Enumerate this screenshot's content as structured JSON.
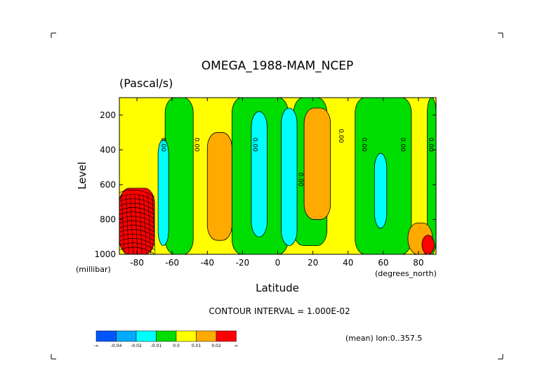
{
  "chart_data": {
    "type": "heatmap",
    "title": "OMEGA_1988-MAM_NCEP",
    "subtitle": "(Pascal/s)",
    "xlabel": "Latitude",
    "xunits": "(degrees_north)",
    "ylabel": "Level",
    "yunits": "(millibar)",
    "xlim": [
      -90,
      90
    ],
    "ylim": [
      1000,
      100
    ],
    "x_ticks": [
      -80,
      -60,
      -40,
      -20,
      0,
      20,
      40,
      60,
      80
    ],
    "x_tick_labels": [
      "-80",
      "-60",
      "-40",
      "-20",
      "0",
      "20",
      "40",
      "60",
      "80"
    ],
    "y_ticks": [
      200,
      400,
      600,
      800,
      1000
    ],
    "y_tick_labels": [
      "200",
      "400",
      "600",
      "800",
      "1000"
    ],
    "contour_interval_text": "CONTOUR INTERVAL = 1.000E-02",
    "mean_text": "(mean) lon:0..357.5",
    "contour_labels": [
      {
        "text": "0.00",
        "x": -66,
        "y": 370
      },
      {
        "text": "0.00",
        "x": -47,
        "y": 370
      },
      {
        "text": "0.00",
        "x": -14,
        "y": 370
      },
      {
        "text": "0.00",
        "x": 12,
        "y": 570
      },
      {
        "text": "0.00",
        "x": 35,
        "y": 320
      },
      {
        "text": "0.00",
        "x": 48,
        "y": 370
      },
      {
        "text": "0.00",
        "x": 70,
        "y": 370
      },
      {
        "text": "0.00",
        "x": 86,
        "y": 370
      }
    ],
    "legend": {
      "colors": [
        "#0055ff",
        "#00aaff",
        "#00ffff",
        "#00dd00",
        "#ffff00",
        "#ffaa00",
        "#ff0000"
      ],
      "labels": [
        "-∞",
        "-0.04",
        "-0.02",
        "-0.01",
        "0.0",
        "0.01",
        "0.02",
        "∞"
      ]
    },
    "regions": [
      {
        "level": "positive-small",
        "color": "#ffff00",
        "lat_range": [
          -90,
          90
        ],
        "p_range": [
          100,
          1000
        ]
      },
      {
        "level": "neg-small",
        "color": "#00dd00",
        "lat_range": [
          -64,
          -48
        ],
        "p_range": [
          100,
          1000
        ]
      },
      {
        "level": "neg-small",
        "color": "#00dd00",
        "lat_range": [
          -26,
          6
        ],
        "p_range": [
          100,
          1000
        ]
      },
      {
        "level": "neg-small",
        "color": "#00dd00",
        "lat_range": [
          9,
          28
        ],
        "p_range": [
          100,
          950
        ]
      },
      {
        "level": "neg-small",
        "color": "#00dd00",
        "lat_range": [
          44,
          76
        ],
        "p_range": [
          100,
          1000
        ]
      },
      {
        "level": "neg-small",
        "color": "#00dd00",
        "lat_range": [
          85,
          90
        ],
        "p_range": [
          100,
          1000
        ]
      },
      {
        "level": "neg-mid",
        "color": "#00ffff",
        "lat_range": [
          -68,
          -62
        ],
        "p_range": [
          340,
          950
        ]
      },
      {
        "level": "neg-mid",
        "color": "#00ffff",
        "lat_range": [
          -15,
          -6
        ],
        "p_range": [
          180,
          900
        ]
      },
      {
        "level": "neg-mid",
        "color": "#00ffff",
        "lat_range": [
          2,
          11
        ],
        "p_range": [
          160,
          950
        ]
      },
      {
        "level": "neg-mid",
        "color": "#00ffff",
        "lat_range": [
          55,
          62
        ],
        "p_range": [
          420,
          850
        ]
      },
      {
        "level": "pos-mid",
        "color": "#ffaa00",
        "lat_range": [
          -40,
          -26
        ],
        "p_range": [
          300,
          920
        ]
      },
      {
        "level": "pos-mid",
        "color": "#ffaa00",
        "lat_range": [
          15,
          30
        ],
        "p_range": [
          160,
          800
        ]
      },
      {
        "level": "pos-mid",
        "color": "#ffaa00",
        "lat_range": [
          74,
          88
        ],
        "p_range": [
          820,
          1000
        ]
      },
      {
        "level": "pos-large",
        "color": "#ff0000",
        "lat_range": [
          -90,
          -70
        ],
        "p_range": [
          620,
          1000
        ]
      },
      {
        "level": "pos-large",
        "color": "#ff0000",
        "lat_range": [
          82,
          89
        ],
        "p_range": [
          890,
          1000
        ]
      }
    ]
  }
}
